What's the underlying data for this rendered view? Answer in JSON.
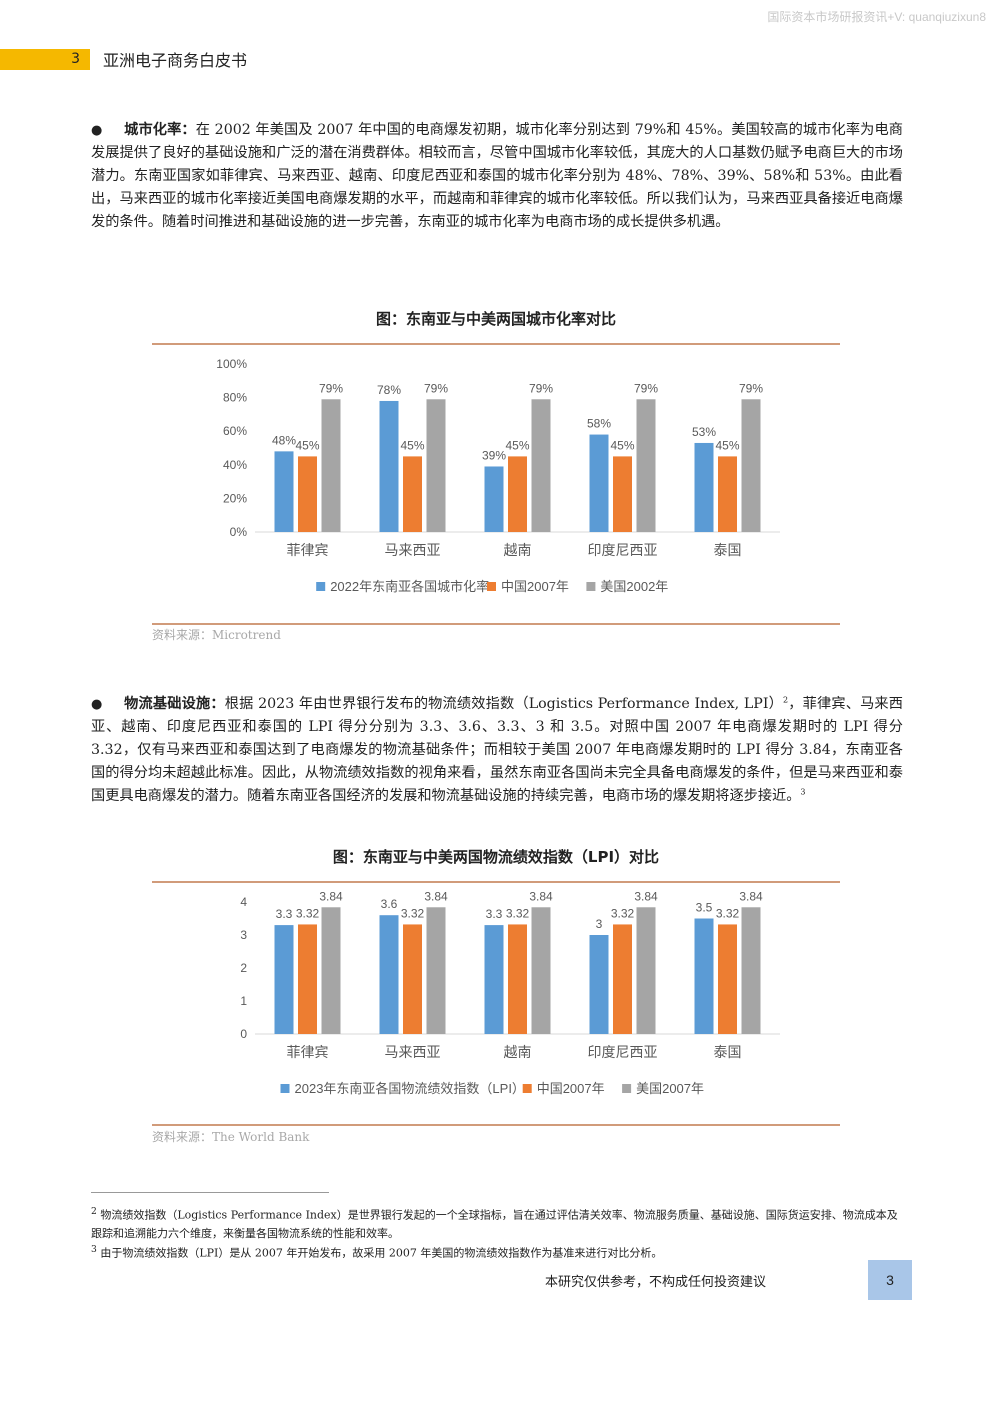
{
  "watermark": "国际资本市场研报资讯+V: quanqiuzixun8",
  "header": {
    "section_number": "3",
    "title": "亚洲电子商务白皮书"
  },
  "para1": {
    "bullet": "●",
    "lead": "城市化率：",
    "text": "在 2002 年美国及 2007 年中国的电商爆发初期，城市化率分别达到 79%和 45%。美国较高的城市化率为电商发展提供了良好的基础设施和广泛的潜在消费群体。相较而言，尽管中国城市化率较低，其庞大的人口基数仍赋予电商巨大的市场潜力。东南亚国家如菲律宾、马来西亚、越南、印度尼西亚和泰国的城市化率分别为 48%、78%、39%、58%和 53%。由此看出，马来西亚的城市化率接近美国电商爆发期的水平，而越南和菲律宾的城市化率较低。所以我们认为，马来西亚具备接近电商爆发的条件。随着时间推进和基础设施的进一步完善，东南亚的城市化率为电商市场的成长提供多机遇。"
  },
  "para2": {
    "bullet": "●",
    "lead": "物流基础设施：",
    "text_a": "根据 2023 年由世界银行发布的物流绩效指数（Logistics Performance Index, LPI）",
    "sup_a": "2",
    "text_b": "，菲律宾、马来西亚、越南、印度尼西亚和泰国的 LPI 得分分别为 3.3、3.6、3.3、3 和 3.5。对照中国 2007 年电商爆发期时的 LPI 得分 3.32，仅有马来西亚和泰国达到了电商爆发的物流基础条件；而相较于美国 2007 年电商爆发期时的 LPI 得分 3.84，东南亚各国的得分均未超越此标准。因此，从物流绩效指数的视角来看，虽然东南亚各国尚未完全具备电商爆发的条件，但是马来西亚和泰国更具电商爆发的潜力。随着东南亚各国经济的发展和物流基础设施的持续完善，电商市场的爆发期将逐步接近。",
    "sup_b": "3"
  },
  "chart_data": [
    {
      "type": "bar",
      "title": "图：东南亚与中美两国城市化率对比",
      "categories": [
        "菲律宾",
        "马来西亚",
        "越南",
        "印度尼西亚",
        "泰国"
      ],
      "series": [
        {
          "name": "2022年东南亚各国城市化率",
          "values": [
            48,
            78,
            39,
            58,
            53
          ],
          "labels": [
            "48%",
            "78%",
            "39%",
            "58%",
            "53%"
          ],
          "color": "#5b9bd5"
        },
        {
          "name": "中国2007年",
          "values": [
            45,
            45,
            45,
            45,
            45
          ],
          "labels": [
            "45%",
            "45%",
            "45%",
            "45%",
            "45%"
          ],
          "color": "#ed7d31"
        },
        {
          "name": "美国2002年",
          "values": [
            79,
            79,
            79,
            79,
            79
          ],
          "labels": [
            "79%",
            "79%",
            "79%",
            "79%",
            "79%"
          ],
          "color": "#a5a5a5"
        }
      ],
      "ylim": [
        0,
        100
      ],
      "yticks": [
        "0%",
        "20%",
        "40%",
        "60%",
        "80%",
        "100%"
      ],
      "grid": false,
      "legend": "bottom",
      "source": "资料来源：Microtrend"
    },
    {
      "type": "bar",
      "title": "图：东南亚与中美两国物流绩效指数（LPI）对比",
      "categories": [
        "菲律宾",
        "马来西亚",
        "越南",
        "印度尼西亚",
        "泰国"
      ],
      "series": [
        {
          "name": "2023年东南亚各国物流绩效指数（LPI）",
          "values": [
            3.3,
            3.6,
            3.3,
            3,
            3.5
          ],
          "labels": [
            "3.3",
            "3.6",
            "3.3",
            "3",
            "3.5"
          ],
          "color": "#5b9bd5"
        },
        {
          "name": "中国2007年",
          "values": [
            3.32,
            3.32,
            3.32,
            3.32,
            3.32
          ],
          "labels": [
            "3.32",
            "3.32",
            "3.32",
            "3.32",
            "3.32"
          ],
          "color": "#ed7d31"
        },
        {
          "name": "美国2007年",
          "values": [
            3.84,
            3.84,
            3.84,
            3.84,
            3.84
          ],
          "labels": [
            "3.84",
            "3.84",
            "3.84",
            "3.84",
            "3.84"
          ],
          "color": "#a5a5a5"
        }
      ],
      "ylim": [
        0,
        4
      ],
      "yticks": [
        "0",
        "1",
        "2",
        "3",
        "4"
      ],
      "grid": false,
      "legend": "bottom",
      "source": "资料来源：The World Bank"
    }
  ],
  "footnotes": [
    {
      "num": "2",
      "text": "物流绩效指数（Logistics Performance Index）是世界银行发起的一个全球指标，旨在通过评估清关效率、物流服务质量、基础设施、国际货运安排、物流成本及跟踪和追溯能力六个维度，来衡量各国物流系统的性能和效率。"
    },
    {
      "num": "3",
      "text": "由于物流绩效指数（LPI）是从 2007 年开始发布，故采用 2007 年美国的物流绩效指数作为基准来进行对比分析。"
    }
  ],
  "footer": {
    "disclaimer": "本研究仅供参考，不构成任何投资建议",
    "page": "3"
  }
}
